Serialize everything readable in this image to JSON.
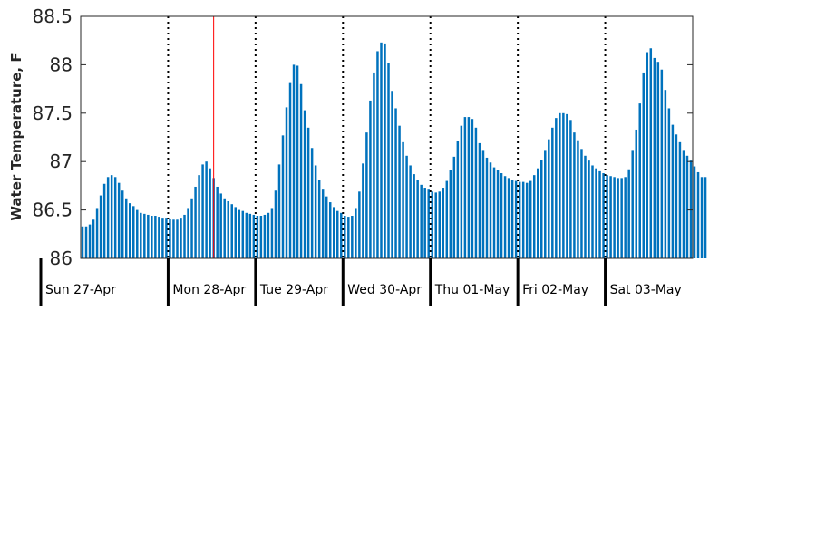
{
  "chart_data": {
    "type": "bar",
    "title": "",
    "ylabel": "Water Temperature, F",
    "xlabel": "",
    "ylim": [
      86,
      88.5
    ],
    "yticks": [
      86,
      86.5,
      87,
      87.5,
      88,
      88.5
    ],
    "ytick_labels": [
      "86",
      "86.5",
      "87",
      "87.5",
      "88",
      "88.5"
    ],
    "days": [
      "Sun 27-Apr",
      "Mon 28-Apr",
      "Tue 29-Apr",
      "Wed 30-Apr",
      "Thu 01-May",
      "Fri 02-May",
      "Sat 03-May"
    ],
    "hours_per_day": 24,
    "hours_total": 168,
    "current_hour": 36,
    "grid": false,
    "bar_color": "#0072BD",
    "marker_color": "#FF0000",
    "values": [
      86.33,
      86.33,
      86.35,
      86.4,
      86.52,
      86.65,
      86.77,
      86.84,
      86.86,
      86.84,
      86.78,
      86.7,
      86.62,
      86.57,
      86.54,
      86.5,
      86.47,
      86.46,
      86.45,
      86.44,
      86.44,
      86.43,
      86.42,
      86.42,
      86.41,
      86.4,
      86.4,
      86.42,
      86.45,
      86.52,
      86.62,
      86.74,
      86.86,
      86.97,
      87.0,
      86.93,
      86.83,
      86.74,
      86.67,
      86.62,
      86.59,
      86.56,
      86.53,
      86.5,
      86.49,
      86.47,
      86.46,
      86.45,
      86.44,
      86.44,
      86.45,
      86.47,
      86.52,
      86.7,
      86.97,
      87.27,
      87.56,
      87.82,
      88.0,
      87.99,
      87.8,
      87.53,
      87.35,
      87.14,
      86.96,
      86.81,
      86.71,
      86.64,
      86.58,
      86.53,
      86.49,
      86.47,
      86.44,
      86.43,
      86.44,
      86.52,
      86.69,
      86.98,
      87.3,
      87.63,
      87.92,
      88.14,
      88.23,
      88.22,
      88.02,
      87.73,
      87.55,
      87.37,
      87.2,
      87.06,
      86.96,
      86.87,
      86.81,
      86.76,
      86.73,
      86.71,
      86.69,
      86.68,
      86.69,
      86.73,
      86.8,
      86.91,
      87.05,
      87.21,
      87.37,
      87.46,
      87.46,
      87.44,
      87.35,
      87.19,
      87.12,
      87.04,
      86.99,
      86.94,
      86.91,
      86.88,
      86.85,
      86.83,
      86.81,
      86.8,
      86.79,
      86.79,
      86.78,
      86.8,
      86.86,
      86.93,
      87.02,
      87.12,
      87.23,
      87.35,
      87.45,
      87.5,
      87.5,
      87.49,
      87.43,
      87.3,
      87.22,
      87.13,
      87.06,
      87.01,
      86.96,
      86.93,
      86.9,
      86.88,
      86.86,
      86.85,
      86.84,
      86.83,
      86.83,
      86.84,
      86.92,
      87.12,
      87.33,
      87.6,
      87.92,
      88.13,
      88.17,
      88.07,
      88.03,
      87.95,
      87.74,
      87.55,
      87.38,
      87.28,
      87.2,
      87.12,
      87.06,
      87.01,
      86.95,
      86.89,
      86.84,
      86.84
    ]
  }
}
